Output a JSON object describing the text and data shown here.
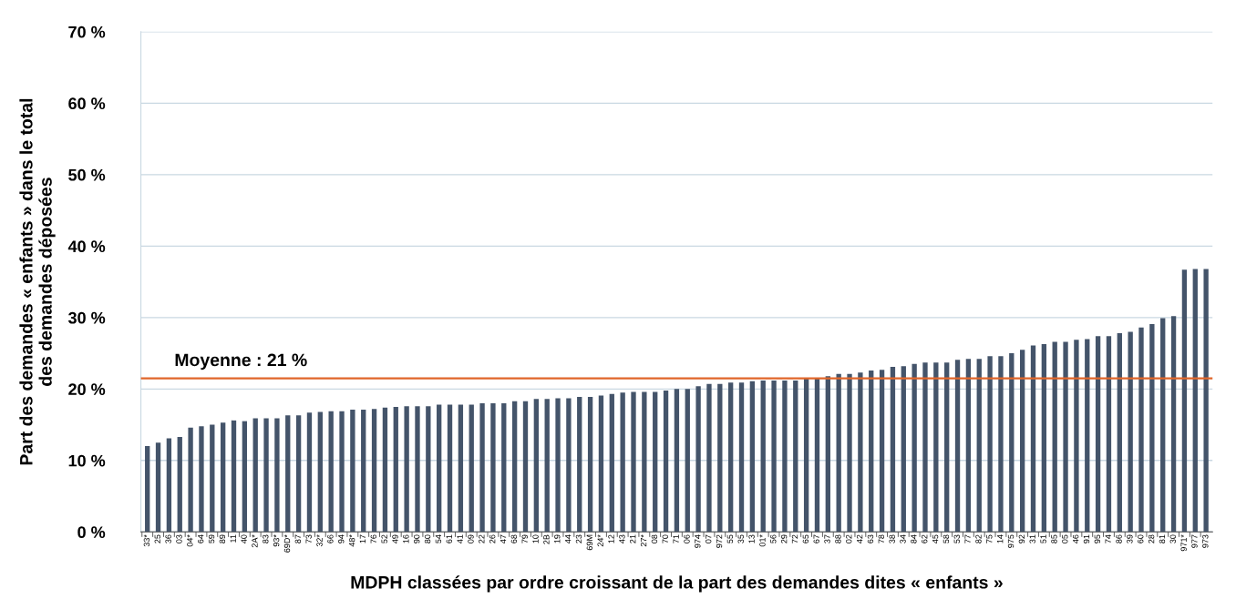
{
  "chart_data": {
    "type": "bar",
    "xlabel": "MDPH classées par ordre croissant de la part des demandes dites « enfants »",
    "ylabel": "Part des demandes « enfants » dans le total\ndes demandes déposées",
    "categories": [
      "33*",
      "25",
      "36",
      "03",
      "04*",
      "64",
      "59",
      "89",
      "11",
      "40",
      "2A*",
      "83",
      "93*",
      "69D*",
      "87",
      "73",
      "32*",
      "66",
      "94",
      "48*",
      "17",
      "76",
      "52",
      "49",
      "16",
      "90",
      "80",
      "54",
      "61",
      "41",
      "09",
      "22",
      "26",
      "47",
      "68",
      "79",
      "10",
      "2B",
      "19",
      "44",
      "23",
      "69M",
      "24*",
      "12",
      "43",
      "21",
      "27*",
      "08",
      "70",
      "71",
      "06",
      "974",
      "07",
      "972",
      "55",
      "35",
      "13",
      "01*",
      "56",
      "29",
      "72",
      "65",
      "67",
      "37",
      "88",
      "02",
      "42",
      "63",
      "78",
      "38",
      "34",
      "84",
      "62",
      "45",
      "58",
      "53",
      "77",
      "82",
      "75",
      "14",
      "975",
      "92",
      "31",
      "51",
      "85",
      "05",
      "46",
      "91",
      "95",
      "74",
      "86",
      "39",
      "60",
      "28",
      "81",
      "30",
      "971*",
      "977",
      "973"
    ],
    "values": [
      12.0,
      12.5,
      13.1,
      13.3,
      14.6,
      14.8,
      15.0,
      15.3,
      15.6,
      15.5,
      15.9,
      15.9,
      15.9,
      16.3,
      16.3,
      16.7,
      16.8,
      16.9,
      16.9,
      17.1,
      17.1,
      17.2,
      17.4,
      17.5,
      17.6,
      17.6,
      17.6,
      17.8,
      17.8,
      17.8,
      17.8,
      18.0,
      18.0,
      18.0,
      18.3,
      18.3,
      18.6,
      18.6,
      18.7,
      18.7,
      18.9,
      18.9,
      19.1,
      19.3,
      19.5,
      19.6,
      19.6,
      19.6,
      19.8,
      20.0,
      20.0,
      20.4,
      20.7,
      20.7,
      20.9,
      20.9,
      21.1,
      21.2,
      21.2,
      21.2,
      21.2,
      21.5,
      21.5,
      21.8,
      22.1,
      22.1,
      22.3,
      22.6,
      22.7,
      23.1,
      23.2,
      23.5,
      23.7,
      23.7,
      23.7,
      24.1,
      24.2,
      24.2,
      24.6,
      24.6,
      25.0,
      25.5,
      26.1,
      26.3,
      26.6,
      26.6,
      26.9,
      27.0,
      27.4,
      27.4,
      27.8,
      28.0,
      28.6,
      29.1,
      29.9,
      30.2,
      36.7,
      36.8,
      36.8
    ],
    "color": "#44546a",
    "ylim": [
      0,
      70
    ],
    "yticks": [
      {
        "value": 0,
        "label": "0 %"
      },
      {
        "value": 10,
        "label": "10 %"
      },
      {
        "value": 20,
        "label": "20 %"
      },
      {
        "value": 30,
        "label": "30 %"
      },
      {
        "value": 40,
        "label": "40 %"
      },
      {
        "value": 50,
        "label": "50 %"
      },
      {
        "value": 60,
        "label": "60 %"
      },
      {
        "value": 70,
        "label": "70 %"
      }
    ],
    "grid": "y",
    "legend": false,
    "ref_lines": [
      {
        "axis": "y",
        "value": 21.5,
        "label": "Moyenne : 21 %",
        "color": "#e0662a",
        "line_style": "solid"
      }
    ]
  }
}
